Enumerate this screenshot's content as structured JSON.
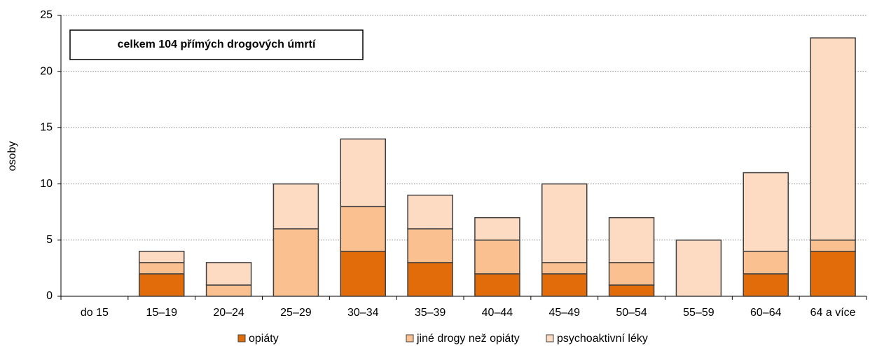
{
  "chart_data": {
    "type": "stacked_bar",
    "annotation": "celkem 104 přímých drogových úmrtí",
    "y_label": "osoby",
    "categories": [
      "do 15",
      "15–19",
      "20–24",
      "25–29",
      "30–34",
      "35–39",
      "40–44",
      "45–49",
      "50–54",
      "55–59",
      "60–64",
      "64 a více"
    ],
    "series": [
      {
        "name": "opiáty",
        "color": "#e36c0a",
        "values": [
          0,
          2,
          0,
          0,
          4,
          3,
          2,
          2,
          1,
          0,
          2,
          4
        ]
      },
      {
        "name": "jiné drogy než opiáty",
        "color": "#fac090",
        "values": [
          0,
          1,
          1,
          6,
          4,
          3,
          3,
          1,
          2,
          0,
          2,
          1
        ]
      },
      {
        "name": "psychoaktivní léky",
        "color": "#fddac2",
        "values": [
          0,
          1,
          2,
          4,
          6,
          3,
          2,
          7,
          4,
          5,
          7,
          18
        ]
      }
    ],
    "ylim": [
      0,
      25
    ],
    "yticks": [
      0,
      5,
      10,
      15,
      20,
      25
    ],
    "grid": true
  }
}
